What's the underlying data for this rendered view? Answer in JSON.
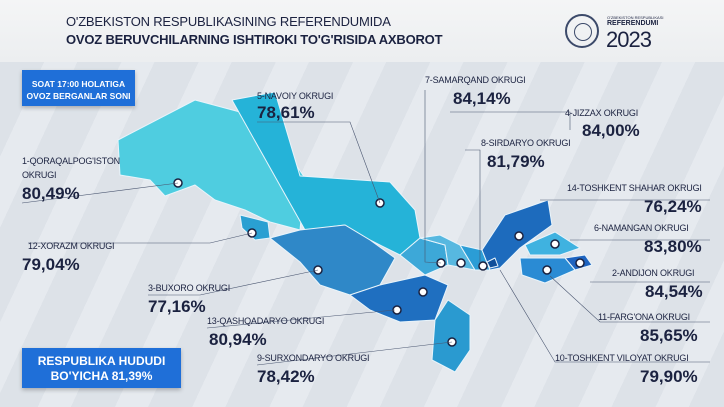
{
  "header": {
    "title_line1": "O'ZBEKISTON RESPUBLIKASINING REFERENDUMIDA",
    "title_line2": "OVOZ BERUVCHILARNING ISHTIROKI TO'G'RISIDA AXBOROT"
  },
  "logo": {
    "small": "O'ZBEKISTON RESPUBLIKASI",
    "name": "REFERENDUMI",
    "year": "2023"
  },
  "time_note": {
    "line1": "SOAT 17:00 HOLATIGA",
    "line2": "OVOZ BERGANLAR SONI"
  },
  "total": {
    "line1": "RESPUBLIKA HUDUDI",
    "line2": "BO'YICHA 81,39%"
  },
  "districts": {
    "navoiy": {
      "label": "5-NAVOIY OKRUGI",
      "value": "78,61%"
    },
    "samarqand": {
      "label": "7-SAMARQAND OKRUGI",
      "value": "84,14%"
    },
    "jizzax": {
      "label": "4-JIZZAX OKRUGI",
      "value": "84,00%"
    },
    "sirdaryo": {
      "label": "8-SIRDARYO OKRUGI",
      "value": "81,79%"
    },
    "qoraqalpogiston": {
      "label1": "1-QORAQALPOG'ISTON",
      "label2": "OKRUGI",
      "value": "80,49%"
    },
    "toshkent_shahar": {
      "label": "14-TOSHKENT SHAHAR OKRUGI",
      "value": "76,24%"
    },
    "namangan": {
      "label": "6-NAMANGAN OKRUGI",
      "value": "83,80%"
    },
    "xorazm": {
      "label": "12-XORAZM OKRUGI",
      "value": "79,04%"
    },
    "andijon": {
      "label": "2-ANDIJON OKRUGI",
      "value": "84,54%"
    },
    "buxoro": {
      "label": "3-BUXORO OKRUGI",
      "value": "77,16%"
    },
    "fargona": {
      "label": "11-FARG'ONA OKRUGI",
      "value": "85,65%"
    },
    "qashqadaryo": {
      "label": "13-QASHQADARYO OKRUGI",
      "value": "80,94%"
    },
    "surxondaryo": {
      "label": "9-SURXONDARYO OKRUGI",
      "value": "78,42%"
    },
    "toshkent_viloyat": {
      "label": "10-TOSHKENT VILOYAT OKRUGI",
      "value": "79,90%"
    }
  }
}
